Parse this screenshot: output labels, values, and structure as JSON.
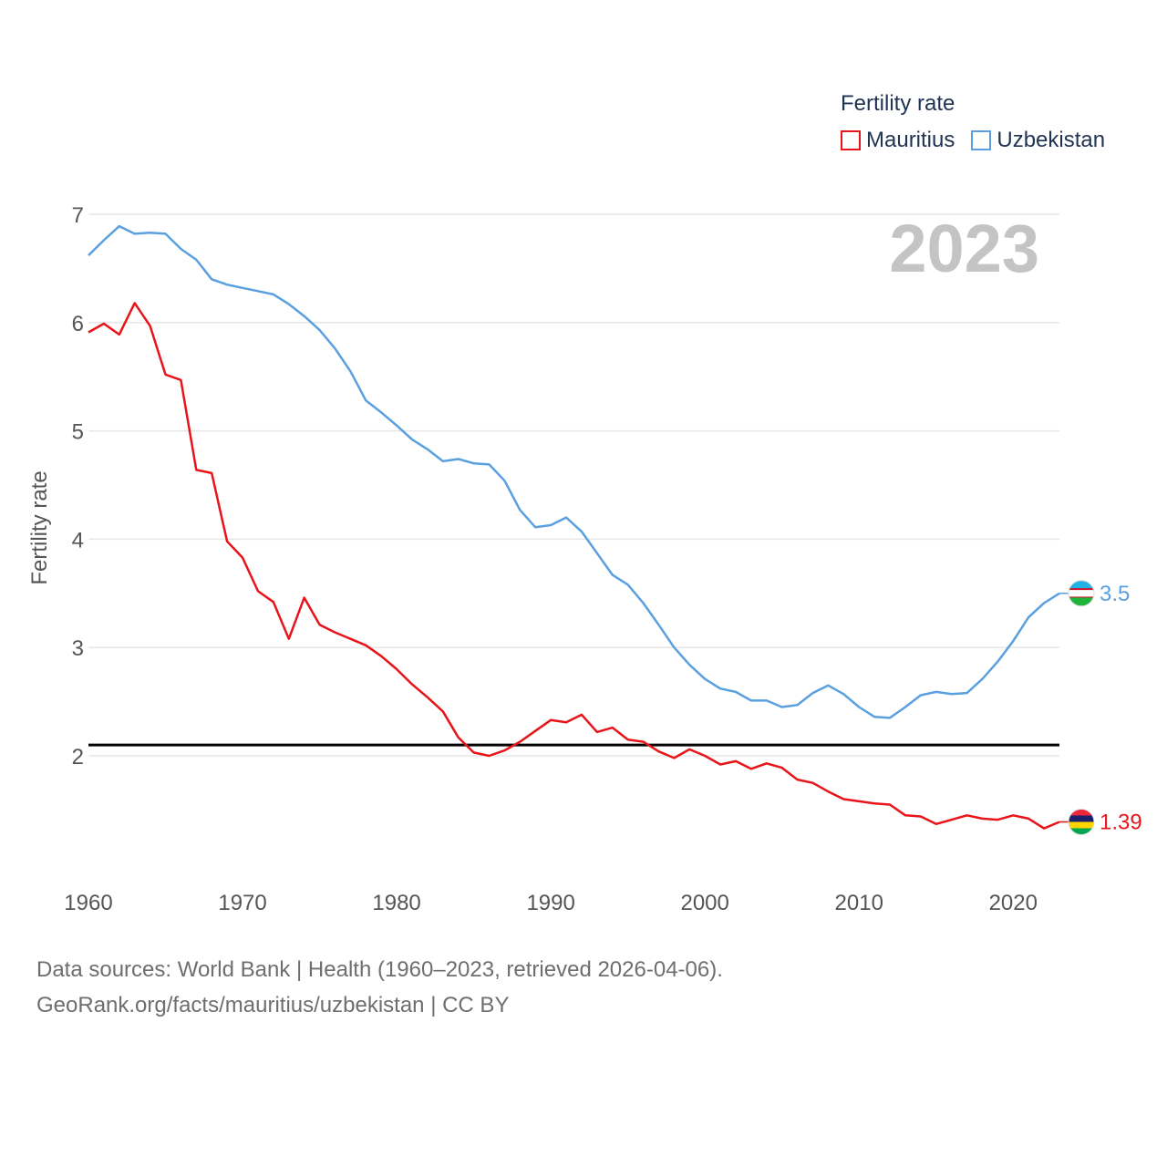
{
  "chart_data": {
    "type": "line",
    "year_label": "2023",
    "ylabel": "Fertility rate",
    "xlabel": "",
    "legend_title": "Fertility rate",
    "xlim": [
      1960,
      2023
    ],
    "ylim": [
      1,
      7
    ],
    "x_ticks": [
      1960,
      1970,
      1980,
      1990,
      2000,
      2010,
      2020
    ],
    "y_ticks": [
      2,
      3,
      4,
      5,
      6,
      7
    ],
    "reference_line": 2.1,
    "series": [
      {
        "name": "Mauritius",
        "color": "#e8141a",
        "end_label": "1.39",
        "flag": "mauritius",
        "x": [
          1960,
          1961,
          1962,
          1963,
          1964,
          1965,
          1966,
          1967,
          1968,
          1969,
          1970,
          1971,
          1972,
          1973,
          1974,
          1975,
          1976,
          1977,
          1978,
          1979,
          1980,
          1981,
          1982,
          1983,
          1984,
          1985,
          1986,
          1987,
          1988,
          1989,
          1990,
          1991,
          1992,
          1993,
          1994,
          1995,
          1996,
          1997,
          1998,
          1999,
          2000,
          2001,
          2002,
          2003,
          2004,
          2005,
          2006,
          2007,
          2008,
          2009,
          2010,
          2011,
          2012,
          2013,
          2014,
          2015,
          2016,
          2017,
          2018,
          2019,
          2020,
          2021,
          2022,
          2023
        ],
        "values": [
          5.91,
          5.99,
          5.89,
          6.18,
          5.97,
          5.52,
          5.47,
          4.64,
          4.61,
          3.98,
          3.83,
          3.52,
          3.42,
          3.08,
          3.46,
          3.21,
          3.14,
          3.08,
          3.02,
          2.92,
          2.8,
          2.66,
          2.54,
          2.41,
          2.17,
          2.03,
          2.0,
          2.05,
          2.13,
          2.23,
          2.33,
          2.31,
          2.38,
          2.22,
          2.26,
          2.15,
          2.13,
          2.04,
          1.98,
          2.06,
          2.0,
          1.92,
          1.95,
          1.88,
          1.93,
          1.89,
          1.78,
          1.75,
          1.67,
          1.6,
          1.58,
          1.56,
          1.55,
          1.45,
          1.44,
          1.37,
          1.41,
          1.45,
          1.42,
          1.41,
          1.45,
          1.42,
          1.33,
          1.39
        ]
      },
      {
        "name": "Uzbekistan",
        "color": "#5aa0e0",
        "end_label": "3.5",
        "flag": "uzbekistan",
        "x": [
          1960,
          1961,
          1962,
          1963,
          1964,
          1965,
          1966,
          1967,
          1968,
          1969,
          1970,
          1971,
          1972,
          1973,
          1974,
          1975,
          1976,
          1977,
          1978,
          1979,
          1980,
          1981,
          1982,
          1983,
          1984,
          1985,
          1986,
          1987,
          1988,
          1989,
          1990,
          1991,
          1992,
          1993,
          1994,
          1995,
          1996,
          1997,
          1998,
          1999,
          2000,
          2001,
          2002,
          2003,
          2004,
          2005,
          2006,
          2007,
          2008,
          2009,
          2010,
          2011,
          2012,
          2013,
          2014,
          2015,
          2016,
          2017,
          2018,
          2019,
          2020,
          2021,
          2022,
          2023
        ],
        "values": [
          6.62,
          6.76,
          6.89,
          6.82,
          6.83,
          6.82,
          6.68,
          6.58,
          6.4,
          6.35,
          6.32,
          6.29,
          6.26,
          6.17,
          6.06,
          5.93,
          5.76,
          5.55,
          5.28,
          5.17,
          5.05,
          4.92,
          4.83,
          4.72,
          4.74,
          4.7,
          4.69,
          4.54,
          4.27,
          4.11,
          4.13,
          4.2,
          4.07,
          3.87,
          3.67,
          3.58,
          3.41,
          3.21,
          3.0,
          2.84,
          2.71,
          2.62,
          2.59,
          2.51,
          2.51,
          2.45,
          2.47,
          2.58,
          2.65,
          2.57,
          2.45,
          2.36,
          2.35,
          2.45,
          2.56,
          2.59,
          2.57,
          2.58,
          2.71,
          2.87,
          3.06,
          3.28,
          3.41,
          3.5
        ]
      }
    ]
  },
  "footer": {
    "line1": "Data sources: World Bank | Health (1960–2023, retrieved 2026-04-06).",
    "line2": "GeoRank.org/facts/mauritius/uzbekistan | CC BY"
  }
}
